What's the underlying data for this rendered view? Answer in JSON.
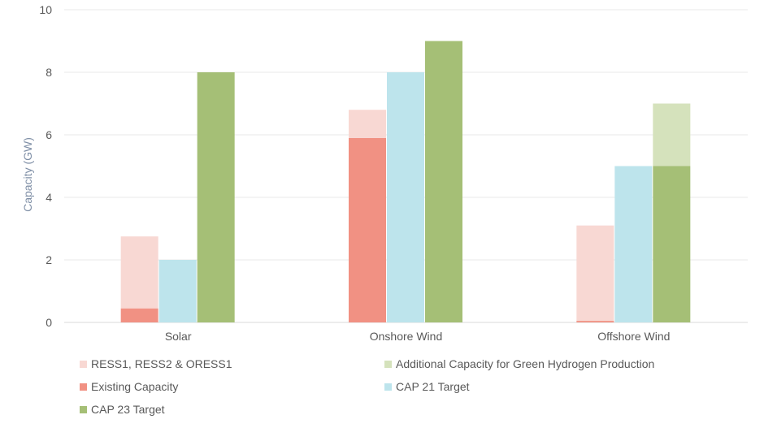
{
  "chart_data": {
    "type": "bar",
    "stacked_groups": true,
    "categories": [
      "Solar",
      "Onshore Wind",
      "Offshore Wind"
    ],
    "ylabel": "Capacity (GW)",
    "xlabel": "",
    "ylim": [
      0,
      10
    ],
    "yticks": [
      0,
      2,
      4,
      6,
      8,
      10
    ],
    "grid": true,
    "legend_position": "bottom",
    "series": [
      {
        "name": "RESS1, RESS2 & ORESS1",
        "color": "#f8d8d3",
        "stack": "existing",
        "values": [
          2.3,
          0.9,
          3.05
        ]
      },
      {
        "name": "Additional Capacity for Green Hydrogen Production",
        "color": "#d5e2bc",
        "stack": "cap23",
        "values": [
          0,
          0,
          2
        ]
      },
      {
        "name": "Existing Capacity",
        "color": "#f19183",
        "stack": "existing",
        "values": [
          0.45,
          5.9,
          0.05
        ]
      },
      {
        "name": "CAP 21 Target",
        "color": "#bde4ec",
        "stack": "cap21",
        "values": [
          2,
          8,
          5
        ]
      },
      {
        "name": "CAP 23 Target",
        "color": "#a5bf76",
        "stack": "cap23",
        "values": [
          8,
          9,
          5
        ]
      }
    ]
  }
}
